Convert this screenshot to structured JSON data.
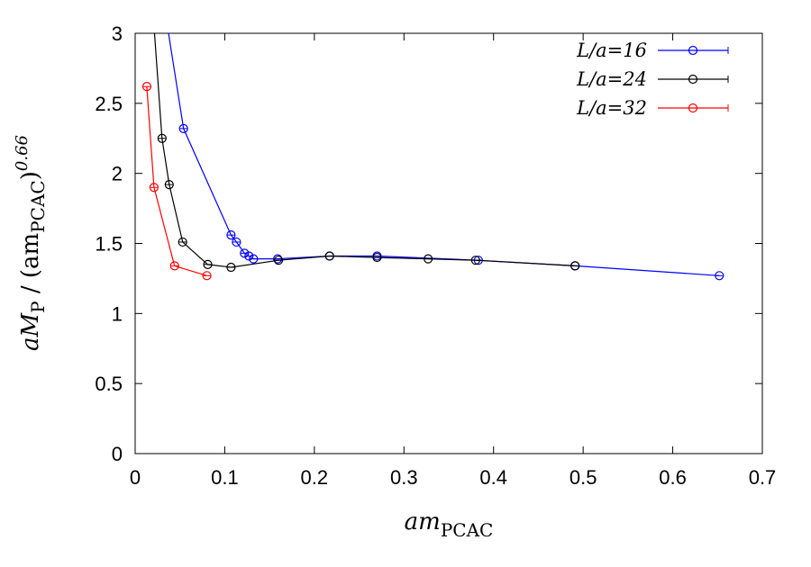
{
  "chart_data": {
    "type": "line",
    "xlabel": {
      "main": "am",
      "sub": "PCAC"
    },
    "ylabel": {
      "a": "aM",
      "p": "P",
      "mid": " / (am",
      "pcac": "PCAC",
      "close": ")",
      "exp": "0.66"
    },
    "xlim": [
      0,
      0.7
    ],
    "ylim": [
      0,
      3
    ],
    "xticks": [
      "0",
      "0.1",
      "0.2",
      "0.3",
      "0.4",
      "0.5",
      "0.6",
      "0.7"
    ],
    "yticks": [
      "0",
      "0.5",
      "1",
      "1.5",
      "2",
      "2.5",
      "3"
    ],
    "grid": false,
    "legend_position": "top-right",
    "series": [
      {
        "name": "L/a=16",
        "color": "#0000ff",
        "x": [
          0.054,
          0.107,
          0.113,
          0.122,
          0.127,
          0.132,
          0.159,
          0.217,
          0.27,
          0.383,
          0.491,
          0.652
        ],
        "y": [
          2.32,
          1.56,
          1.51,
          1.43,
          1.41,
          1.39,
          1.39,
          1.41,
          1.41,
          1.38,
          1.34,
          1.27
        ],
        "lead_in": {
          "x": 0.036,
          "y": 3.05
        }
      },
      {
        "name": "L/a=24",
        "color": "#000000",
        "x": [
          0.03,
          0.038,
          0.053,
          0.081,
          0.107,
          0.16,
          0.217,
          0.27,
          0.327,
          0.38,
          0.491
        ],
        "y": [
          2.25,
          1.92,
          1.51,
          1.35,
          1.33,
          1.38,
          1.41,
          1.4,
          1.39,
          1.38,
          1.34
        ],
        "lead_in": {
          "x": 0.021,
          "y": 3.05
        }
      },
      {
        "name": "L/a=32",
        "color": "#ff0000",
        "x": [
          0.013,
          0.021,
          0.044,
          0.08
        ],
        "y": [
          2.62,
          1.9,
          1.34,
          1.27
        ]
      }
    ]
  }
}
